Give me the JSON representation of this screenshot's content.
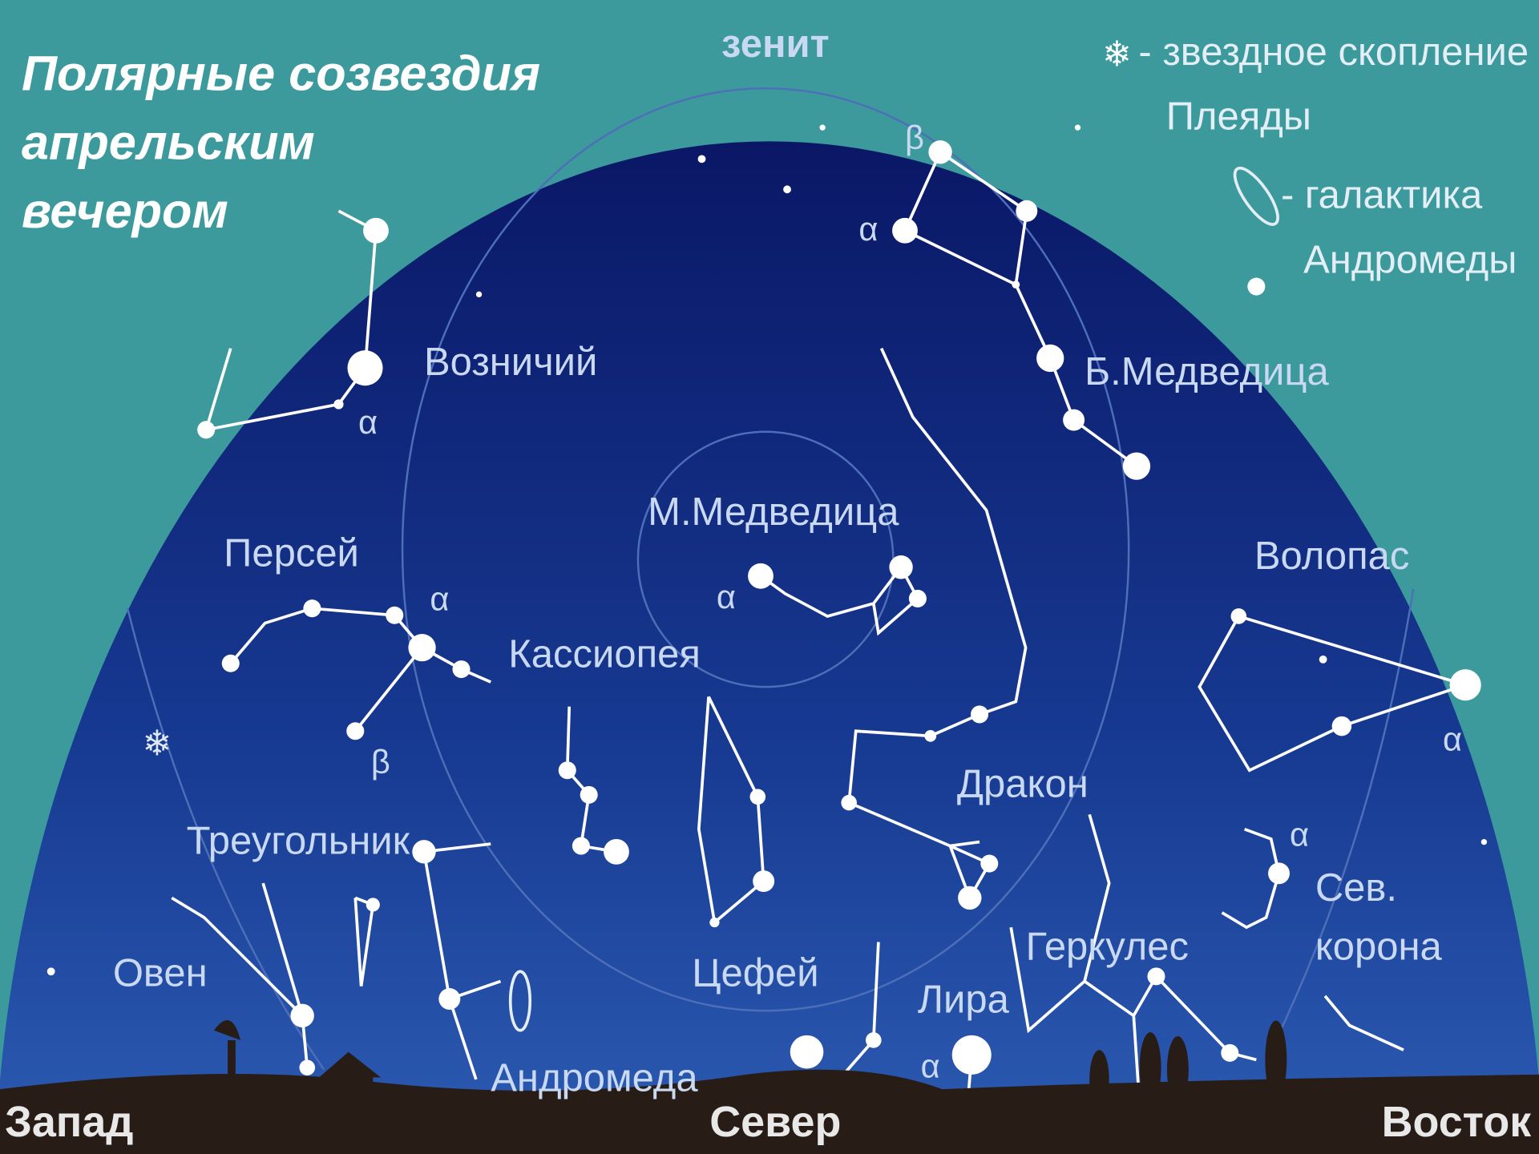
{
  "header": {
    "title_lines": [
      "Полярные созвездия",
      "апрельским",
      "вечером"
    ],
    "zenith": "зенит"
  },
  "legend": {
    "cluster": [
      "- звездное скопление",
      "Плеяды"
    ],
    "galaxy": [
      "- галактика",
      "Андромеды"
    ]
  },
  "constellations": [
    "Возничий",
    "Б.Медведица",
    "М.Медведица",
    "Персей",
    "Волопас",
    "Кассиопея",
    "Дракон",
    "Треугольник",
    "Сев.",
    "корона",
    "Геркулес",
    "Овен",
    "Цефей",
    "Лира",
    "Андромеда"
  ],
  "greek": [
    "β",
    "α",
    "α",
    "α",
    "β",
    "α",
    "α",
    "α",
    "α"
  ],
  "directions": [
    "Запад",
    "Север",
    "Восток"
  ]
}
